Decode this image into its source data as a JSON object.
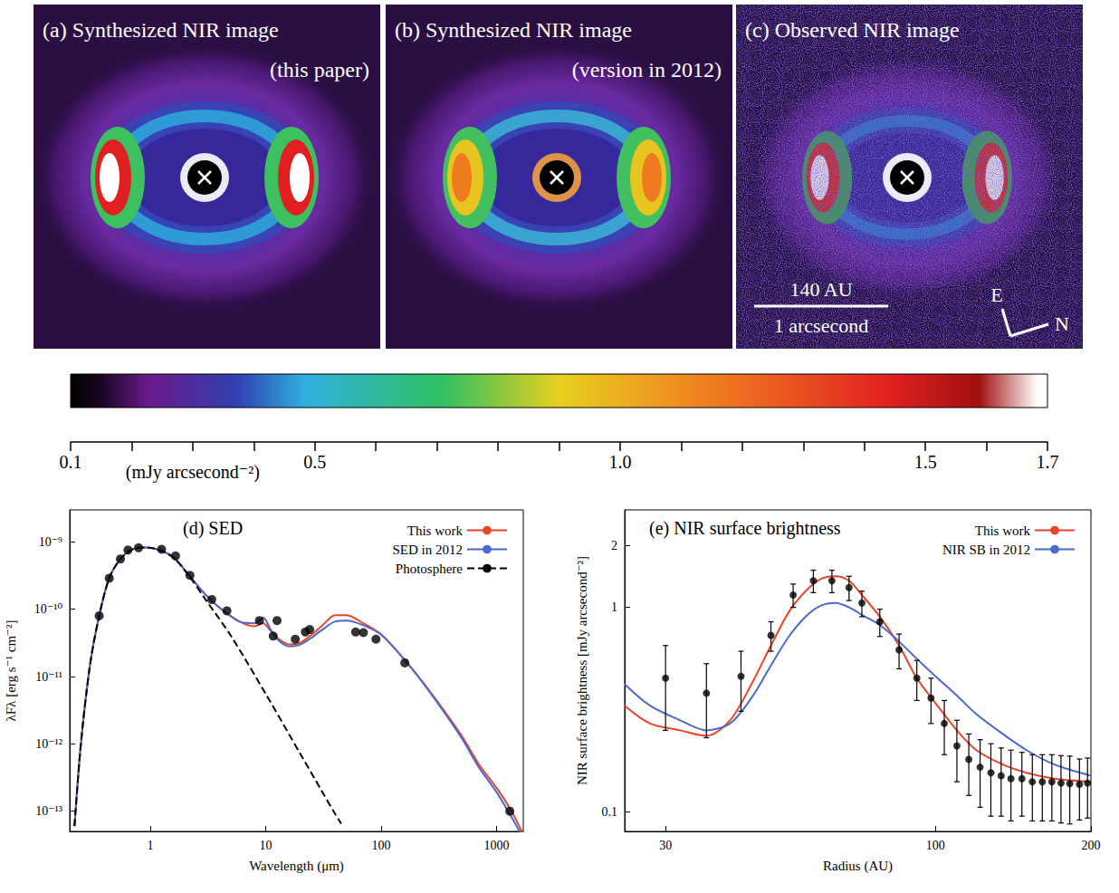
{
  "images": [
    {
      "title": "(a) Synthesized NIR image",
      "subtitle": "(this paper)"
    },
    {
      "title": "(b) Synthesized NIR image",
      "subtitle": "(version in 2012)"
    },
    {
      "title": "(c) Observed NIR image",
      "scale_bar": [
        "140 AU",
        "1 arcsecond"
      ],
      "compass": [
        "E",
        "N"
      ]
    }
  ],
  "colorbar": {
    "label": "(mJy arcsecond⁻²)",
    "range": [
      0.1,
      1.7
    ],
    "ticks": [
      0.1,
      0.5,
      {
        "value": 1,
        "label": "1.0"
      },
      1.5,
      1.7
    ],
    "minor_ticks": [
      0.2,
      0.3,
      0.4,
      0.6,
      0.7,
      0.8,
      0.9,
      1.1,
      1.2,
      1.3,
      1.4,
      1.6
    ]
  },
  "chart_data": [
    {
      "type": "line",
      "title": "(d) SED",
      "x_label": "Wavelength (μm)",
      "y_label": "λFλ [erg s⁻¹ cm⁻²]",
      "log": true,
      "grid": false,
      "legend": "upper right",
      "xlim": [
        0.2,
        1700
      ],
      "xticks": [
        1,
        10,
        100,
        1000
      ],
      "ylim": [
        5e-14,
        3e-09
      ],
      "yticks": [
        {
          "value": 1e-13,
          "label": "10⁻¹³"
        },
        {
          "value": 1e-12,
          "label": "10⁻¹²"
        },
        {
          "value": 1e-11,
          "label": "10⁻¹¹"
        },
        {
          "value": 1e-10,
          "label": "10⁻¹⁰"
        },
        {
          "value": 1e-09,
          "label": "10⁻⁹"
        }
      ],
      "series": [
        {
          "name": "This work",
          "type": "line",
          "color": "#e8452a",
          "line_style": "solid",
          "x": [
            0.22,
            0.25,
            0.3,
            0.36,
            0.44,
            0.55,
            0.7,
            0.9,
            1.2,
            1.6,
            2.2,
            3,
            4,
            6,
            8,
            9.5,
            11,
            13,
            16,
            20,
            25,
            30,
            40,
            50,
            70,
            100,
            150,
            200,
            300,
            500,
            700,
            1000,
            1300,
            1700
          ],
          "values": [
            6e-14,
            1e-12,
            1.5e-11,
            8e-11,
            2.9e-10,
            5.6e-10,
            7.8e-10,
            8.3e-10,
            7.6e-10,
            5.8e-10,
            3.1e-10,
            1.65e-10,
            1.05e-10,
            6.5e-11,
            5.6e-11,
            6.2e-11,
            4.8e-11,
            3.6e-11,
            3e-11,
            3.2e-11,
            4.2e-11,
            5.5e-11,
            8.2e-11,
            8.2e-11,
            6.2e-11,
            4.2e-11,
            2e-11,
            1.1e-11,
            4.5e-12,
            1.3e-12,
            5e-13,
            2.2e-13,
            1.1e-13,
            4.5e-14
          ]
        },
        {
          "name": "SED in 2012",
          "type": "line",
          "color": "#4a68cf",
          "line_style": "solid",
          "x": [
            0.22,
            0.25,
            0.3,
            0.36,
            0.44,
            0.55,
            0.7,
            0.9,
            1.2,
            1.6,
            2.2,
            3,
            4,
            6,
            8,
            9.5,
            11,
            13,
            16,
            20,
            25,
            30,
            40,
            50,
            70,
            100,
            150,
            200,
            300,
            500,
            700,
            1000,
            1300,
            1700
          ],
          "values": [
            6e-14,
            1e-12,
            1.5e-11,
            8e-11,
            2.9e-10,
            5.6e-10,
            7.8e-10,
            8.3e-10,
            7.6e-10,
            5.8e-10,
            3.1e-10,
            1.65e-10,
            1.05e-10,
            6.5e-11,
            6.2e-11,
            7.5e-11,
            5e-11,
            3.4e-11,
            2.8e-11,
            3e-11,
            3.8e-11,
            4.8e-11,
            6.6e-11,
            6.8e-11,
            5.8e-11,
            4.2e-11,
            2e-11,
            1.1e-11,
            4.3e-12,
            1.2e-12,
            4.5e-13,
            1.9e-13,
            9e-14,
            4e-14
          ]
        },
        {
          "name": "Photosphere",
          "type": "line",
          "color": "#000000",
          "line_style": "dashed",
          "x": [
            0.22,
            0.25,
            0.3,
            0.36,
            0.44,
            0.55,
            0.7,
            0.9,
            1.2,
            1.6,
            2.2,
            3,
            5,
            10,
            20,
            30,
            40,
            45
          ],
          "values": [
            6e-14,
            1e-12,
            1.5e-11,
            8e-11,
            2.9e-10,
            5.6e-10,
            7.8e-10,
            8.3e-10,
            7.6e-10,
            5.8e-10,
            3e-10,
            1.4e-10,
            4e-11,
            5.5e-12,
            7e-13,
            2.1e-13,
            9e-14,
            6.5e-14
          ]
        },
        {
          "type": "scatter",
          "color": "#000000",
          "marker": "circle",
          "x": [
            0.36,
            0.44,
            0.55,
            0.64,
            0.79,
            1.25,
            1.65,
            2.2,
            3.4,
            4.6,
            8.8,
            11.6,
            12.5,
            18,
            22,
            24,
            60,
            70,
            90,
            160,
            1300
          ],
          "values": [
            8e-11,
            2.9e-10,
            5.6e-10,
            7.6e-10,
            8.2e-10,
            7.8e-10,
            6.2e-10,
            3.2e-10,
            1.4e-10,
            9.5e-11,
            6.8e-11,
            4e-11,
            6.8e-11,
            3.6e-11,
            4.6e-11,
            5e-11,
            4.6e-11,
            4.5e-11,
            3.6e-11,
            1.6e-11,
            1e-13
          ]
        }
      ]
    },
    {
      "type": "line",
      "title": "(e) NIR surface brightness",
      "x_label": "Radius (AU)",
      "y_label": "NIR surface brightness [mJy arcsecond⁻²]",
      "log": true,
      "grid": false,
      "legend": "upper right",
      "xlim": [
        25,
        200
      ],
      "xticks": [
        30,
        100,
        200
      ],
      "ylim": [
        0.08,
        3
      ],
      "yticks": [
        0.1,
        1,
        2
      ],
      "series": [
        {
          "name": "This work",
          "type": "line",
          "color": "#e8452a",
          "line_style": "solid",
          "x": [
            25,
            28,
            32,
            36,
            40,
            44,
            48,
            52,
            56,
            60,
            64,
            68,
            72,
            78,
            85,
            92,
            100,
            110,
            120,
            135,
            150,
            170,
            200
          ],
          "values": [
            0.33,
            0.27,
            0.25,
            0.235,
            0.28,
            0.42,
            0.65,
            0.95,
            1.2,
            1.38,
            1.42,
            1.35,
            1.15,
            0.9,
            0.65,
            0.45,
            0.34,
            0.25,
            0.2,
            0.17,
            0.155,
            0.145,
            0.14
          ]
        },
        {
          "name": "NIR SB in 2012",
          "type": "line",
          "color": "#4a68cf",
          "line_style": "solid",
          "x": [
            25,
            28,
            32,
            36,
            40,
            44,
            48,
            52,
            56,
            60,
            64,
            68,
            72,
            78,
            85,
            92,
            100,
            110,
            120,
            135,
            150,
            170,
            200
          ],
          "values": [
            0.42,
            0.33,
            0.28,
            0.25,
            0.27,
            0.36,
            0.52,
            0.72,
            0.9,
            1.02,
            1.05,
            1,
            0.92,
            0.82,
            0.68,
            0.56,
            0.46,
            0.37,
            0.3,
            0.24,
            0.2,
            0.17,
            0.15
          ]
        },
        {
          "type": "scatter",
          "color": "#000000",
          "marker": "circle",
          "x": [
            30,
            36,
            42,
            48,
            53,
            58,
            63,
            68,
            72,
            78,
            85,
            92,
            98,
            104,
            110,
            116,
            122,
            128,
            134,
            140,
            147,
            154,
            161,
            168,
            175,
            182,
            190,
            197
          ],
          "values": [
            0.45,
            0.38,
            0.46,
            0.73,
            1.15,
            1.35,
            1.35,
            1.25,
            1.05,
            0.85,
            0.62,
            0.45,
            0.36,
            0.27,
            0.21,
            0.18,
            0.165,
            0.155,
            0.15,
            0.145,
            0.145,
            0.14,
            0.14,
            0.14,
            0.138,
            0.137,
            0.136,
            0.138
          ],
          "yerr": [
            0.2,
            0.15,
            0.15,
            0.12,
            0.15,
            0.17,
            0.17,
            0.17,
            0.15,
            0.13,
            0.12,
            0.1,
            0.09,
            0.08,
            0.07,
            0.06,
            0.06,
            0.06,
            0.055,
            0.055,
            0.05,
            0.05,
            0.05,
            0.05,
            0.05,
            0.05,
            0.045,
            0.045
          ]
        }
      ]
    }
  ]
}
